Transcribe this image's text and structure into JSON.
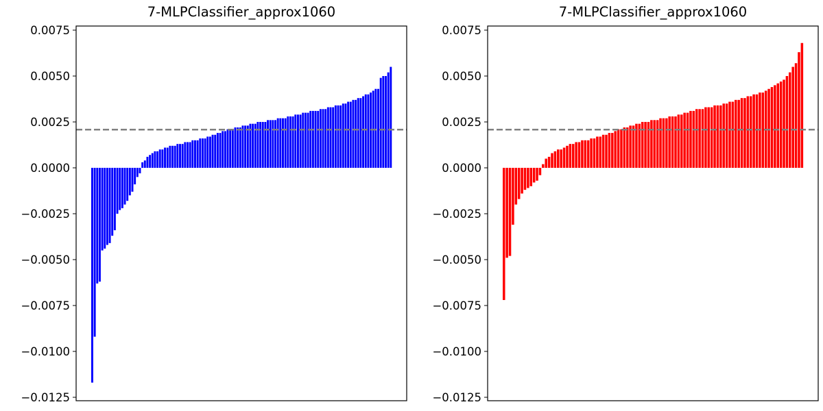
{
  "chart_data": [
    {
      "type": "bar",
      "title": "7-MLPClassifier_approx1060",
      "xlabel": "",
      "ylabel": "",
      "ylim": [
        -0.0125,
        0.0077
      ],
      "yticks": [
        "0.0075",
        "0.0050",
        "0.0025",
        "0.0000",
        "−0.0025",
        "−0.0050",
        "−0.0075",
        "−0.0100",
        "−0.0125"
      ],
      "ytick_values": [
        0.0075,
        0.005,
        0.0025,
        0.0,
        -0.0025,
        -0.005,
        -0.0075,
        -0.01,
        -0.0125
      ],
      "xticks_visible": false,
      "bar_color": "#0000ff",
      "reference_line": {
        "y": 0.00208,
        "color": "#808080",
        "style": "dashed"
      },
      "series": [
        {
          "values": [
            -0.0117,
            -0.0092,
            -0.0063,
            -0.0062,
            -0.0045,
            -0.0044,
            -0.0042,
            -0.0041,
            -0.0037,
            -0.0034,
            -0.0025,
            -0.0023,
            -0.0022,
            -0.002,
            -0.0018,
            -0.0015,
            -0.0013,
            -0.0009,
            -0.0005,
            -0.0003,
            0.0003,
            0.0004,
            0.0006,
            0.0007,
            0.0008,
            0.0009,
            0.0009,
            0.001,
            0.001,
            0.0011,
            0.0011,
            0.0012,
            0.0012,
            0.0012,
            0.0013,
            0.0013,
            0.0013,
            0.0014,
            0.0014,
            0.0014,
            0.0015,
            0.0015,
            0.0015,
            0.0016,
            0.0016,
            0.0016,
            0.0017,
            0.0017,
            0.0018,
            0.0018,
            0.0019,
            0.0019,
            0.002,
            0.002,
            0.0021,
            0.0021,
            0.0021,
            0.0022,
            0.0022,
            0.0022,
            0.0023,
            0.0023,
            0.0023,
            0.0024,
            0.0024,
            0.0024,
            0.0025,
            0.0025,
            0.0025,
            0.0025,
            0.0026,
            0.0026,
            0.0026,
            0.0026,
            0.0027,
            0.0027,
            0.0027,
            0.0027,
            0.0028,
            0.0028,
            0.0028,
            0.0029,
            0.0029,
            0.0029,
            0.003,
            0.003,
            0.003,
            0.0031,
            0.0031,
            0.0031,
            0.0031,
            0.0032,
            0.0032,
            0.0032,
            0.0033,
            0.0033,
            0.0033,
            0.0034,
            0.0034,
            0.0034,
            0.0035,
            0.0035,
            0.0036,
            0.0036,
            0.0037,
            0.0037,
            0.0038,
            0.0038,
            0.0039,
            0.004,
            0.004,
            0.0041,
            0.0042,
            0.0043,
            0.0043,
            0.0049,
            0.005,
            0.005,
            0.0052,
            0.0055
          ]
        }
      ]
    },
    {
      "type": "bar",
      "title": "7-MLPClassifier_approx1060",
      "xlabel": "",
      "ylabel": "",
      "ylim": [
        -0.0125,
        0.0077
      ],
      "yticks": [
        "0.0075",
        "0.0050",
        "0.0025",
        "0.0000",
        "−0.0025",
        "−0.0050",
        "−0.0075",
        "−0.0100",
        "−0.0125"
      ],
      "ytick_values": [
        0.0075,
        0.005,
        0.0025,
        0.0,
        -0.0025,
        -0.005,
        -0.0075,
        -0.01,
        -0.0125
      ],
      "xticks_visible": false,
      "bar_color": "#ff0000",
      "reference_line": {
        "y": 0.00208,
        "color": "#808080",
        "style": "dashed"
      },
      "series": [
        {
          "values": [
            -0.0072,
            -0.0049,
            -0.0048,
            -0.0031,
            -0.002,
            -0.0017,
            -0.0014,
            -0.0012,
            -0.0011,
            -0.001,
            -0.0008,
            -0.0007,
            -0.0004,
            0.0002,
            0.0005,
            0.0006,
            0.0008,
            0.0009,
            0.001,
            0.001,
            0.0011,
            0.0012,
            0.0013,
            0.0013,
            0.0014,
            0.0014,
            0.0015,
            0.0015,
            0.0015,
            0.0016,
            0.0016,
            0.0017,
            0.0017,
            0.0018,
            0.0018,
            0.0019,
            0.0019,
            0.002,
            0.0021,
            0.0021,
            0.0022,
            0.0022,
            0.0023,
            0.0023,
            0.0024,
            0.0024,
            0.0025,
            0.0025,
            0.0025,
            0.0026,
            0.0026,
            0.0026,
            0.0027,
            0.0027,
            0.0027,
            0.0028,
            0.0028,
            0.0028,
            0.0029,
            0.0029,
            0.003,
            0.003,
            0.0031,
            0.0031,
            0.0032,
            0.0032,
            0.0032,
            0.0033,
            0.0033,
            0.0033,
            0.0034,
            0.0034,
            0.0034,
            0.0035,
            0.0035,
            0.0036,
            0.0036,
            0.0037,
            0.0037,
            0.0038,
            0.0038,
            0.0039,
            0.0039,
            0.004,
            0.004,
            0.0041,
            0.0041,
            0.0042,
            0.0043,
            0.0044,
            0.0045,
            0.0046,
            0.0047,
            0.0048,
            0.005,
            0.0052,
            0.0055,
            0.0057,
            0.0063,
            0.0068
          ]
        }
      ]
    }
  ]
}
